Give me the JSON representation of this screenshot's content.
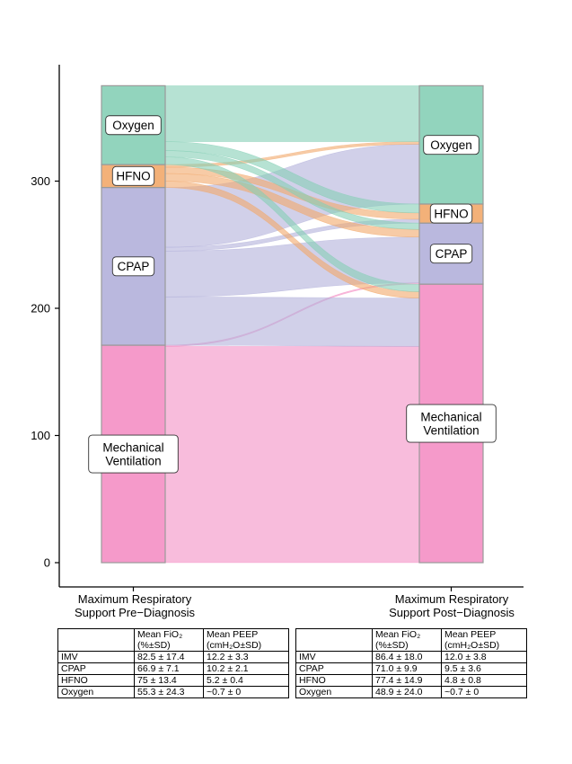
{
  "chart_data": {
    "type": "alluvial",
    "y_axis": {
      "ticks": [
        0,
        100,
        200,
        300
      ],
      "ylim": [
        0,
        375
      ]
    },
    "axes": [
      {
        "label_lines": [
          "Maximum Respiratory",
          "Support Pre−Diagnosis"
        ]
      },
      {
        "label_lines": [
          "Maximum Respiratory",
          "Support Post−Diagnosis"
        ]
      }
    ],
    "categories": [
      {
        "key": "mv",
        "label_lines": [
          "Mechanical",
          "Ventilation"
        ],
        "color": "#f48fc4"
      },
      {
        "key": "cpap",
        "label_lines": [
          "CPAP"
        ],
        "color": "#b3b0da"
      },
      {
        "key": "hfno",
        "label_lines": [
          "HFNO"
        ],
        "color": "#f2a86a"
      },
      {
        "key": "oxygen",
        "label_lines": [
          "Oxygen"
        ],
        "color": "#86cfb6"
      }
    ],
    "stack_order_bottom_to_top": [
      "mv",
      "cpap",
      "hfno",
      "oxygen"
    ],
    "flows": [
      {
        "from": "mv",
        "to": "mv",
        "value": 170
      },
      {
        "from": "mv",
        "to": "cpap",
        "value": 1
      },
      {
        "from": "cpap",
        "to": "mv",
        "value": 38
      },
      {
        "from": "cpap",
        "to": "cpap",
        "value": 36
      },
      {
        "from": "cpap",
        "to": "hfno",
        "value": 3
      },
      {
        "from": "cpap",
        "to": "oxygen",
        "value": 47
      },
      {
        "from": "hfno",
        "to": "mv",
        "value": 5
      },
      {
        "from": "hfno",
        "to": "cpap",
        "value": 6
      },
      {
        "from": "hfno",
        "to": "hfno",
        "value": 5
      },
      {
        "from": "hfno",
        "to": "oxygen",
        "value": 2
      },
      {
        "from": "oxygen",
        "to": "mv",
        "value": 6
      },
      {
        "from": "oxygen",
        "to": "cpap",
        "value": 5
      },
      {
        "from": "oxygen",
        "to": "hfno",
        "value": 7
      },
      {
        "from": "oxygen",
        "to": "oxygen",
        "value": 44
      }
    ]
  },
  "tables": [
    {
      "headers": [
        "",
        [
          "Mean FiO₂",
          "(%±SD)"
        ],
        [
          "Mean PEEP",
          "(cmH₂O±SD)"
        ]
      ],
      "rows": [
        [
          "IMV",
          "82.5 ± 17.4",
          "12.2 ± 3.3"
        ],
        [
          "CPAP",
          "66.9 ± 7.1",
          "10.2 ± 2.1"
        ],
        [
          "HFNO",
          "75 ± 13.4",
          "5.2 ± 0.4"
        ],
        [
          "Oxygen",
          "55.3 ± 24.3",
          "~0.7 ± 0"
        ]
      ]
    },
    {
      "headers": [
        "",
        [
          "Mean FiO₂",
          "(%±SD)"
        ],
        [
          "Mean PEEP",
          "(cmH₂O±SD)"
        ]
      ],
      "rows": [
        [
          "IMV",
          "86.4 ± 18.0",
          "12.0 ± 3.8"
        ],
        [
          "CPAP",
          "71.0 ± 9.9",
          "9.5 ± 3.6"
        ],
        [
          "HFNO",
          "77.4 ± 14.9",
          "4.8 ± 0.8"
        ],
        [
          "Oxygen",
          "48.9 ± 24.0",
          "~0.7 ± 0"
        ]
      ]
    }
  ]
}
